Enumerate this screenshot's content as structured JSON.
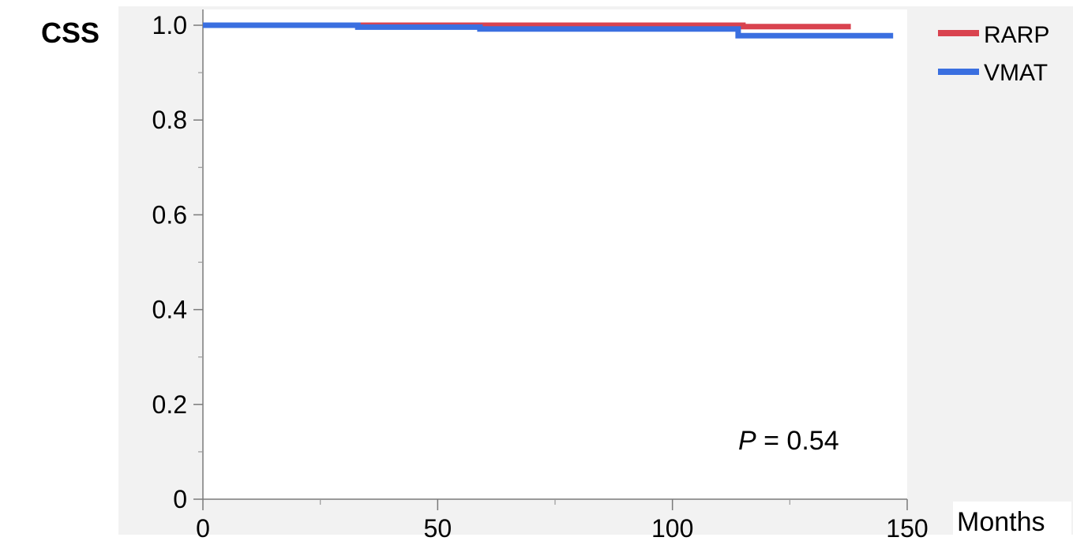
{
  "chart_data": {
    "type": "line",
    "step": true,
    "title": "CSS",
    "xlabel": "Months",
    "ylabel": "",
    "xlim": [
      0,
      150
    ],
    "ylim": [
      0,
      1.0
    ],
    "xticks": [
      {
        "value": 0,
        "label": "0"
      },
      {
        "value": 50,
        "label": "50"
      },
      {
        "value": 100,
        "label": "100"
      },
      {
        "value": 150,
        "label": "150"
      }
    ],
    "yticks": [
      {
        "value": 0,
        "label": "0"
      },
      {
        "value": 0.2,
        "label": "0.2"
      },
      {
        "value": 0.4,
        "label": "0.4"
      },
      {
        "value": 0.6,
        "label": "0.6"
      },
      {
        "value": 0.8,
        "label": "0.8"
      },
      {
        "value": 1.0,
        "label": "1.0"
      }
    ],
    "x_minor_ticks": [
      25,
      75,
      125
    ],
    "y_minor_ticks": [
      0.1,
      0.3,
      0.5,
      0.7,
      0.9
    ],
    "series": [
      {
        "name": "RARP",
        "color": "#d9434f",
        "points": [
          [
            0,
            1.0
          ],
          [
            115,
            1.0
          ],
          [
            115,
            0.997
          ],
          [
            138,
            0.997
          ]
        ]
      },
      {
        "name": "VMAT",
        "color": "#3a6fe0",
        "points": [
          [
            0,
            1.0
          ],
          [
            33,
            1.0
          ],
          [
            33,
            0.996
          ],
          [
            59,
            0.996
          ],
          [
            59,
            0.992
          ],
          [
            114,
            0.992
          ],
          [
            114,
            0.978
          ],
          [
            147,
            0.978
          ]
        ]
      }
    ],
    "legend_position": "top-right",
    "annotation": {
      "symbol": "P",
      "text": " = 0.54"
    }
  }
}
